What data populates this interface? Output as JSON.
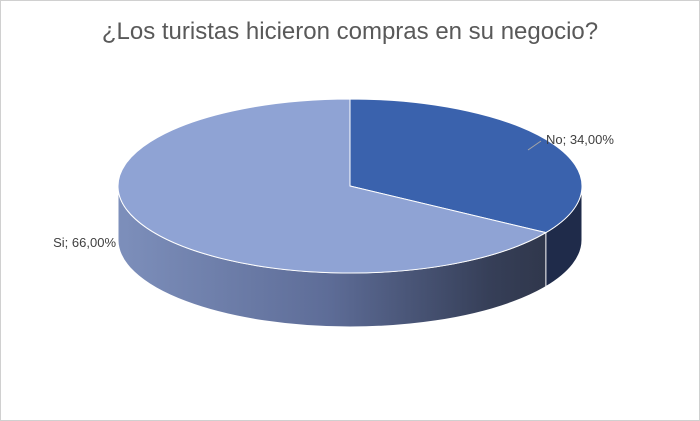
{
  "chart_data": {
    "type": "pie",
    "title": "¿Los turistas hicieron compras en su negocio?",
    "slices": [
      {
        "label": "No",
        "value": 34.0,
        "display": "No; 34,00%",
        "color": "#3a62ad"
      },
      {
        "label": "Si",
        "value": 66.0,
        "display": "Si; 66,00%",
        "color": "#8fa3d4"
      }
    ],
    "style": "3d",
    "legend": "none",
    "data_labels": "outside"
  },
  "colors": {
    "side_light": "#7d8fbb",
    "side_dark": "#2c3244",
    "outline": "#ffffff"
  }
}
